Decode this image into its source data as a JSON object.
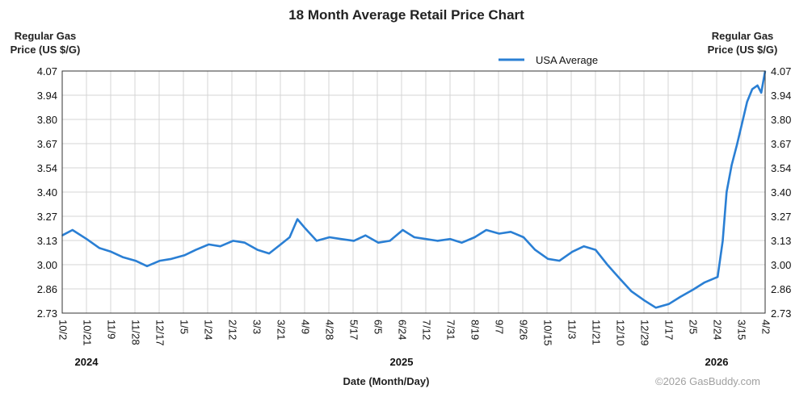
{
  "chart_data": {
    "type": "line",
    "title": "18 Month Average Retail Price Chart",
    "ylabel_left": [
      "Regular Gas",
      "Price (US $/G)"
    ],
    "ylabel_right": [
      "Regular Gas",
      "Price (US $/G)"
    ],
    "xlabel": "Date (Month/Day)",
    "credit": "©2026 GasBuddy.com",
    "legend": {
      "position": "top-right",
      "label": "USA Average"
    },
    "ylim": [
      2.73,
      4.07
    ],
    "yticks": [
      "4.07",
      "3.94",
      "3.80",
      "3.67",
      "3.54",
      "3.40",
      "3.27",
      "3.13",
      "3.00",
      "2.86",
      "2.73"
    ],
    "xticks": [
      "10/2",
      "10/21",
      "11/9",
      "11/28",
      "12/17",
      "1/5",
      "1/24",
      "2/12",
      "3/3",
      "3/21",
      "4/9",
      "4/28",
      "5/17",
      "6/5",
      "6/24",
      "7/12",
      "7/31",
      "8/19",
      "9/7",
      "9/26",
      "10/15",
      "11/3",
      "11/21",
      "12/10",
      "12/29",
      "1/17",
      "2/5",
      "2/24",
      "3/15",
      "4/2"
    ],
    "years": [
      {
        "label": "2024",
        "tick": "10/21"
      },
      {
        "label": "2025",
        "tick": "6/24"
      },
      {
        "label": "2026",
        "tick": "2/24"
      }
    ],
    "grid": true,
    "series": [
      {
        "name": "USA Average",
        "color": "#2a7fd4",
        "x": [
          "2024-10-02",
          "2024-10-10",
          "2024-10-21",
          "2024-10-31",
          "2024-11-09",
          "2024-11-18",
          "2024-11-28",
          "2024-12-07",
          "2024-12-17",
          "2024-12-26",
          "2025-01-05",
          "2025-01-14",
          "2025-01-24",
          "2025-02-02",
          "2025-02-12",
          "2025-02-21",
          "2025-03-03",
          "2025-03-12",
          "2025-03-21",
          "2025-03-28",
          "2025-04-03",
          "2025-04-09",
          "2025-04-18",
          "2025-04-28",
          "2025-05-07",
          "2025-05-17",
          "2025-05-26",
          "2025-06-05",
          "2025-06-14",
          "2025-06-24",
          "2025-07-03",
          "2025-07-12",
          "2025-07-21",
          "2025-07-31",
          "2025-08-09",
          "2025-08-19",
          "2025-08-28",
          "2025-09-07",
          "2025-09-16",
          "2025-09-26",
          "2025-10-05",
          "2025-10-15",
          "2025-10-24",
          "2025-11-03",
          "2025-11-12",
          "2025-11-21",
          "2025-11-30",
          "2025-12-10",
          "2025-12-19",
          "2025-12-29",
          "2026-01-07",
          "2026-01-17",
          "2026-01-26",
          "2026-02-05",
          "2026-02-14",
          "2026-02-24",
          "2026-02-28",
          "2026-03-03",
          "2026-03-07",
          "2026-03-11",
          "2026-03-15",
          "2026-03-19",
          "2026-03-23",
          "2026-03-27",
          "2026-03-30",
          "2026-04-02"
        ],
        "values": [
          3.16,
          3.19,
          3.14,
          3.09,
          3.07,
          3.04,
          3.02,
          2.99,
          3.02,
          3.03,
          3.05,
          3.08,
          3.11,
          3.1,
          3.13,
          3.12,
          3.08,
          3.06,
          3.11,
          3.15,
          3.25,
          3.2,
          3.13,
          3.15,
          3.14,
          3.13,
          3.16,
          3.12,
          3.13,
          3.19,
          3.15,
          3.14,
          3.13,
          3.14,
          3.12,
          3.15,
          3.19,
          3.17,
          3.18,
          3.15,
          3.08,
          3.03,
          3.02,
          3.07,
          3.1,
          3.08,
          3.0,
          2.92,
          2.85,
          2.8,
          2.76,
          2.78,
          2.82,
          2.86,
          2.9,
          2.93,
          3.13,
          3.4,
          3.55,
          3.66,
          3.78,
          3.9,
          3.97,
          3.99,
          3.95,
          4.07
        ]
      }
    ]
  }
}
